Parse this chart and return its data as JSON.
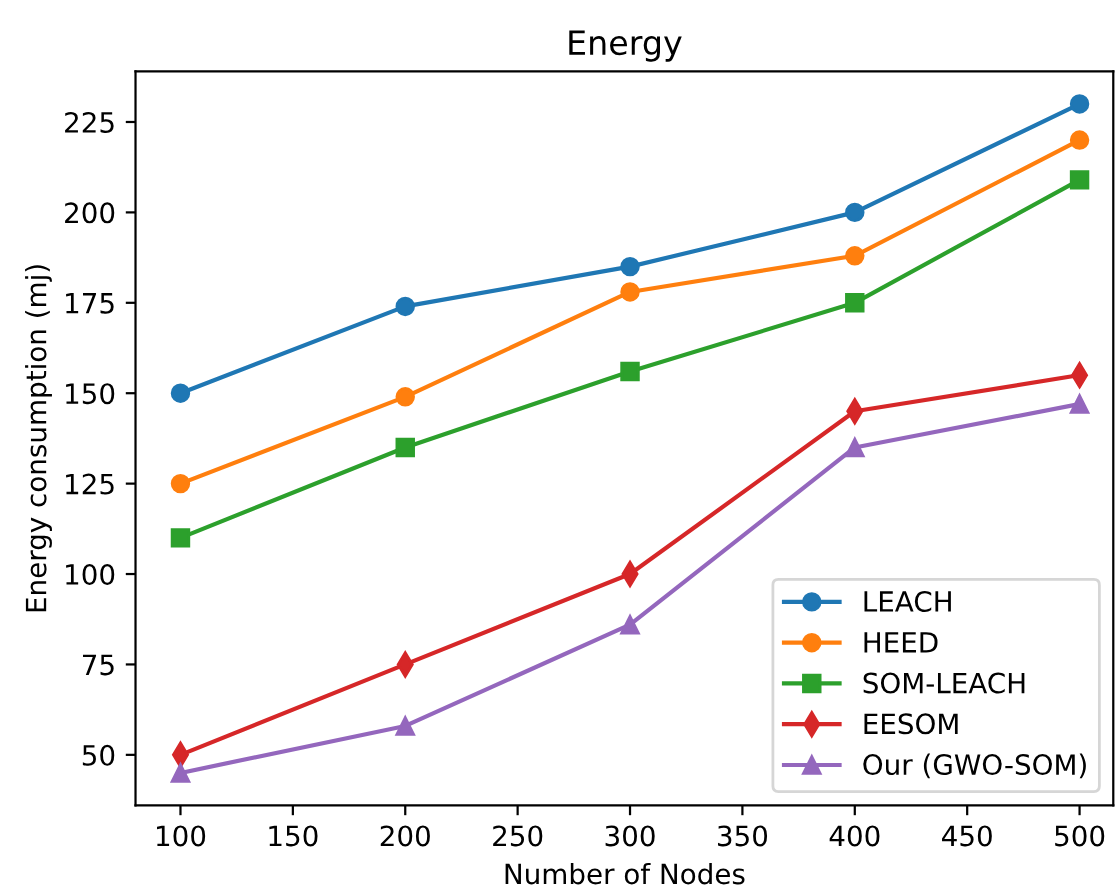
{
  "chart_data": {
    "type": "line",
    "title": "Energy",
    "xlabel": "Number of Nodes",
    "ylabel": "Energy consumption (mj)",
    "x": [
      100,
      200,
      300,
      400,
      500
    ],
    "series": [
      {
        "name": "LEACH",
        "color": "#1f77b4",
        "marker": "circle",
        "values": [
          150,
          174,
          185,
          200,
          230
        ]
      },
      {
        "name": "HEED",
        "color": "#ff7f0e",
        "marker": "circle",
        "values": [
          125,
          149,
          178,
          188,
          220
        ]
      },
      {
        "name": "SOM-LEACH",
        "color": "#2ca02c",
        "marker": "square",
        "values": [
          110,
          135,
          156,
          175,
          209
        ]
      },
      {
        "name": "EESOM",
        "color": "#d62728",
        "marker": "diamond",
        "values": [
          50,
          75,
          100,
          145,
          155
        ]
      },
      {
        "name": "Our (GWO-SOM)",
        "color": "#9467bd",
        "marker": "triangle",
        "values": [
          45,
          58,
          86,
          135,
          147
        ]
      }
    ],
    "xlim": [
      80,
      515
    ],
    "xticks": [
      100,
      150,
      200,
      250,
      300,
      350,
      400,
      450,
      500
    ],
    "ylim": [
      36,
      239
    ],
    "yticks": [
      50,
      75,
      100,
      125,
      150,
      175,
      200,
      225
    ],
    "legend": "bottom right",
    "line_style": "solid"
  }
}
